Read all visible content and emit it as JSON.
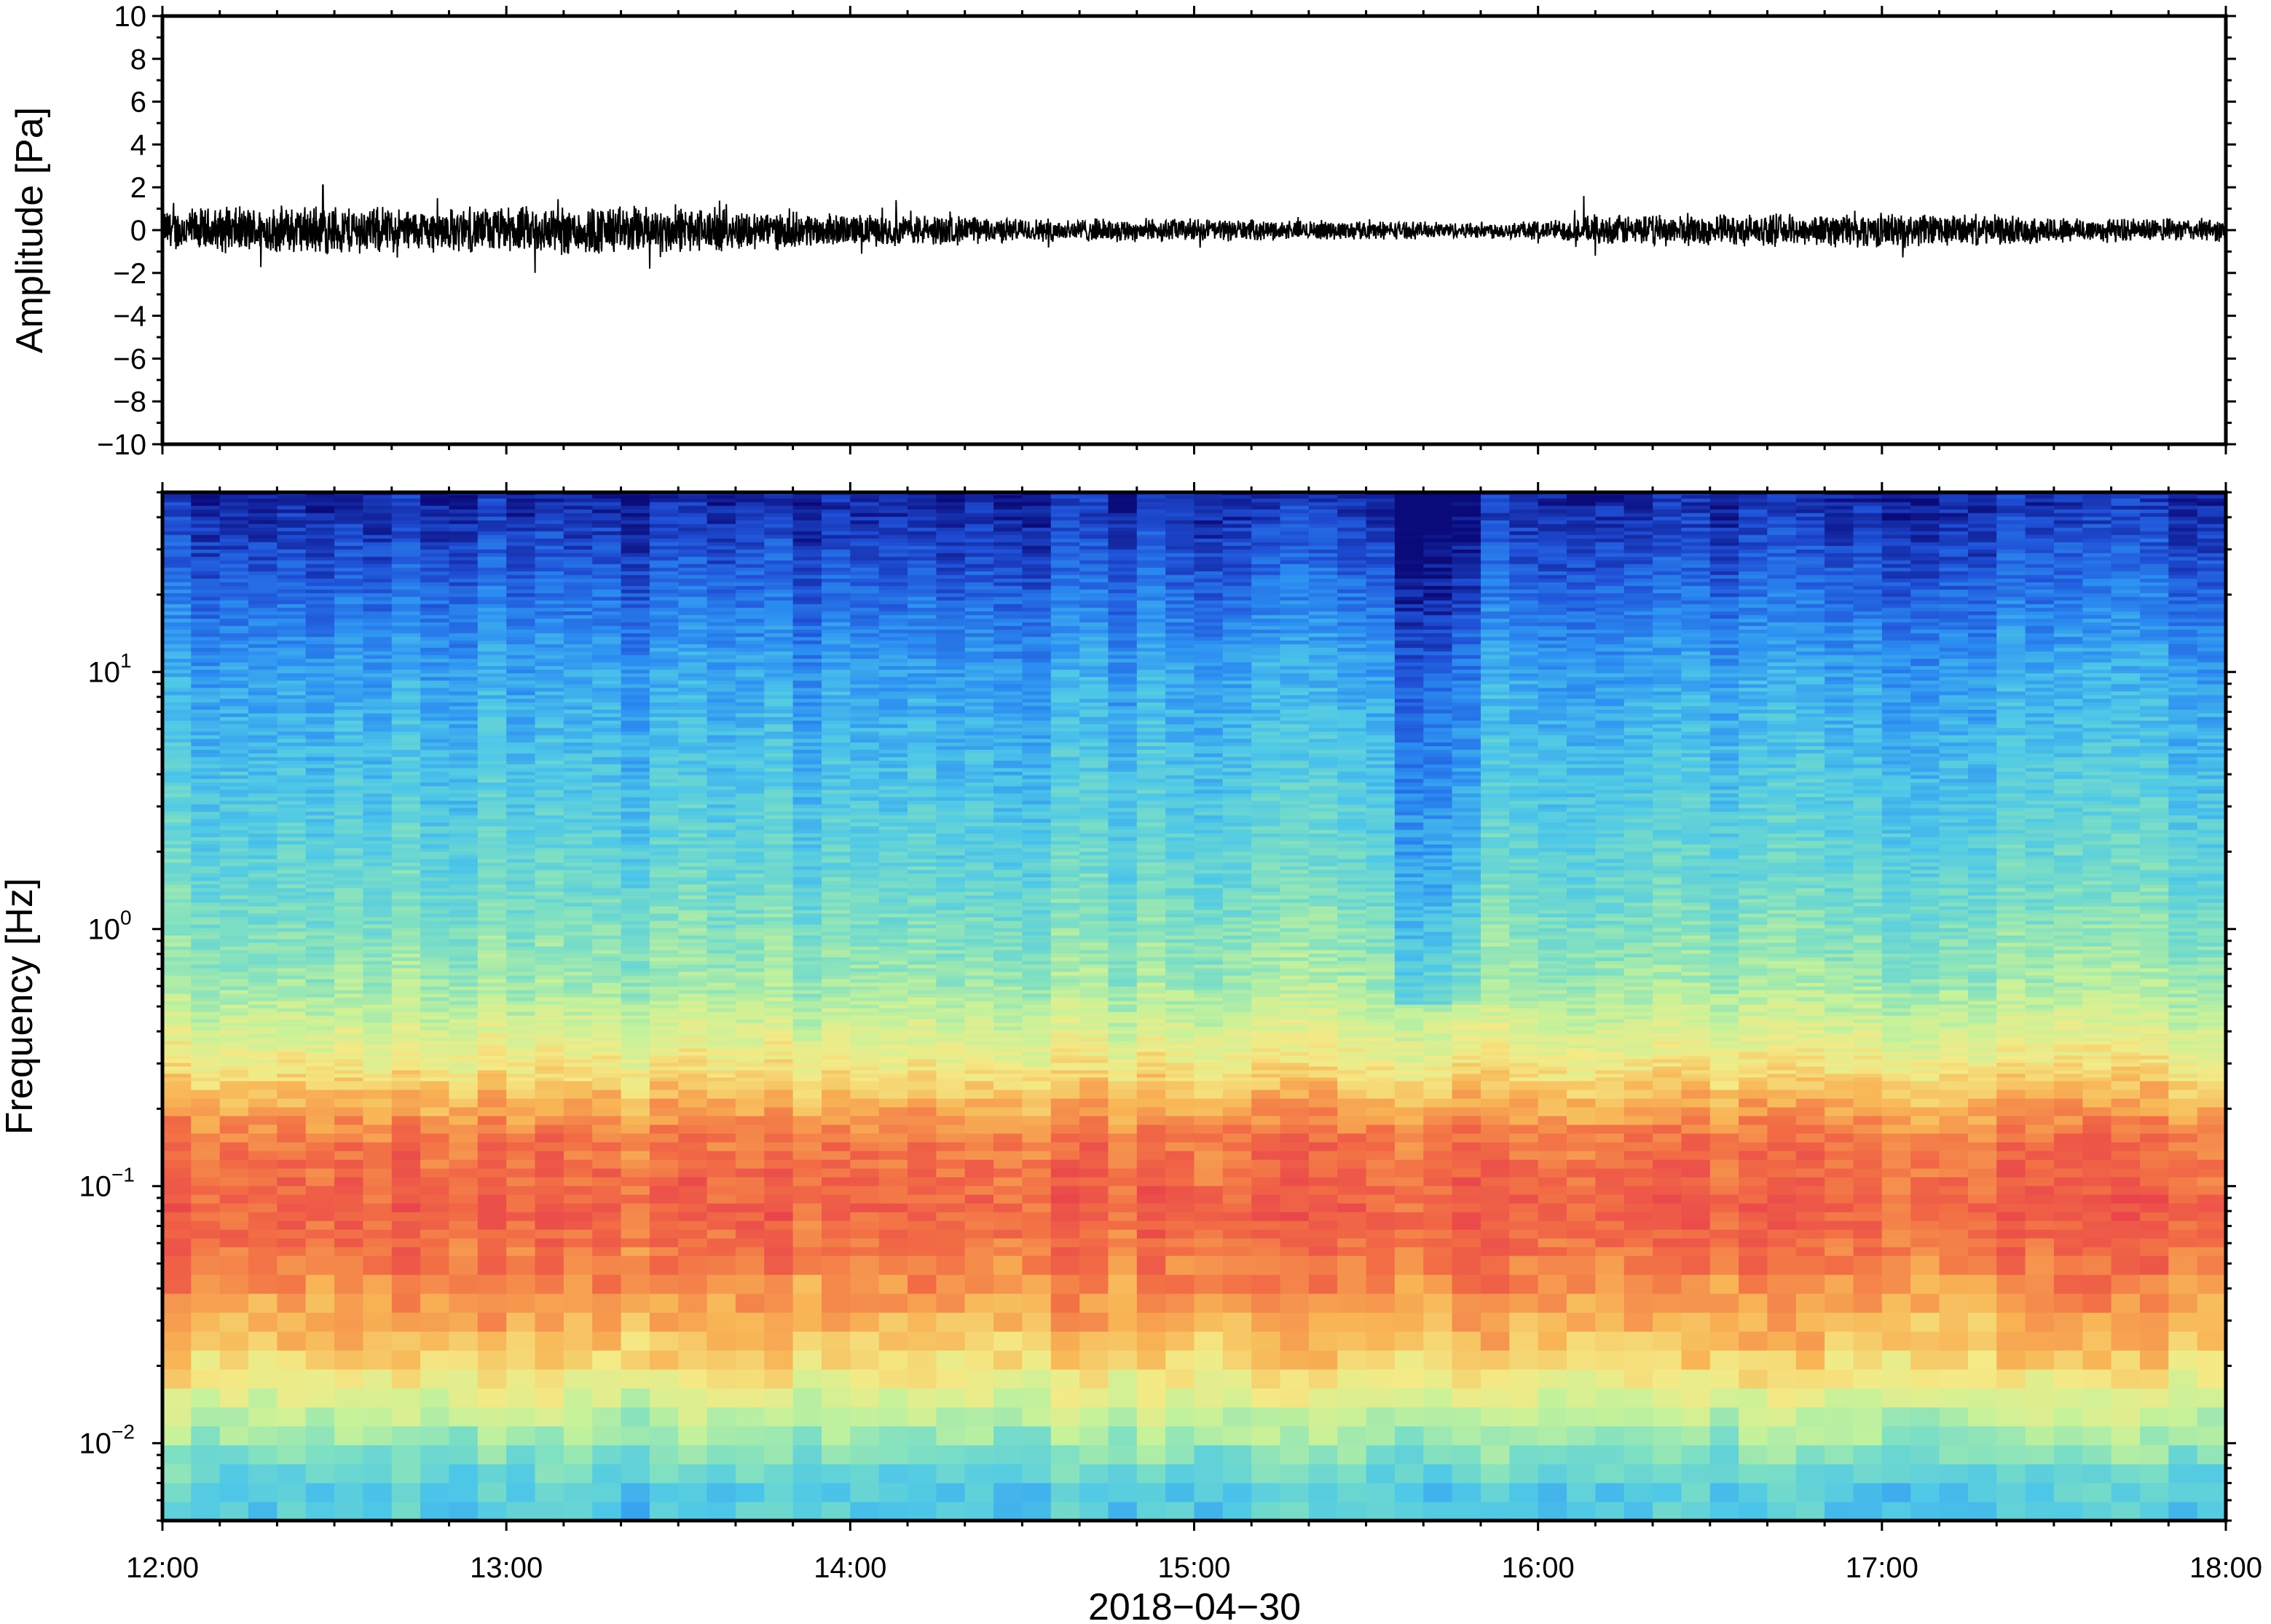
{
  "chart_data": [
    {
      "type": "line",
      "panel": "waveform",
      "ylabel": "Amplitude [Pa]",
      "xlabel": "",
      "ylim": [
        -10,
        10
      ],
      "xlim": [
        "12:00",
        "18:00"
      ],
      "y_ticks": [
        "10",
        "8",
        "6",
        "4",
        "2",
        "0",
        "−2",
        "−4",
        "−6",
        "−8",
        "−10"
      ],
      "y_tick_values": [
        10,
        8,
        6,
        4,
        2,
        0,
        -2,
        -4,
        -6,
        -8,
        -10
      ],
      "grid": false,
      "series": [
        {
          "color": "#000000",
          "time_hours": [
            12.0,
            12.25,
            12.5,
            12.75,
            13.0,
            13.25,
            13.5,
            13.75,
            14.0,
            14.25,
            14.5,
            14.75,
            15.0,
            15.25,
            15.5,
            15.75,
            16.0,
            16.25,
            16.5,
            16.75,
            17.0,
            17.25,
            17.5,
            17.75,
            18.0
          ],
          "envelope_pa": [
            1.1,
            1.2,
            1.3,
            1.1,
            1.2,
            1.3,
            1.2,
            1.0,
            0.8,
            0.8,
            0.6,
            0.6,
            0.6,
            0.5,
            0.5,
            0.4,
            0.5,
            0.8,
            0.8,
            0.8,
            0.9,
            0.8,
            0.7,
            0.6,
            0.6
          ],
          "peaks": [
            {
              "time": "12:28",
              "value": 2.1
            },
            {
              "time": "13:05",
              "value": -2.0
            },
            {
              "time": "13:25",
              "value": -1.8
            },
            {
              "time": "14:08",
              "value": 1.4
            },
            {
              "time": "16:08",
              "value": 1.6
            },
            {
              "time": "16:10",
              "value": -1.2
            }
          ]
        }
      ]
    },
    {
      "type": "heatmap",
      "panel": "spectrogram",
      "ylabel": "Frequency [Hz]",
      "xlabel": "2018−04−30",
      "y_scale": "log",
      "ylim_hz": [
        0.005,
        50
      ],
      "y_ticks": [
        {
          "value": 10,
          "base": "10",
          "exp": "1"
        },
        {
          "value": 1,
          "base": "10",
          "exp": "0"
        },
        {
          "value": 0.1,
          "base": "10",
          "exp": "−1"
        },
        {
          "value": 0.01,
          "base": "10",
          "exp": "−2"
        }
      ],
      "x_ticks": [
        "12:00",
        "13:00",
        "14:00",
        "15:00",
        "16:00",
        "17:00",
        "18:00"
      ],
      "colormap": [
        "#0a0a7a",
        "#1f4fd6",
        "#2c8ff2",
        "#4ec8e8",
        "#7fe0c2",
        "#c6f29a",
        "#f4ea86",
        "#f8b455",
        "#f26d45",
        "#e8404c"
      ],
      "profile": {
        "freq_hz": [
          0.006,
          0.01,
          0.02,
          0.04,
          0.08,
          0.15,
          0.3,
          0.6,
          1.5,
          4,
          10,
          20,
          45
        ],
        "level": [
          0.35,
          0.5,
          0.72,
          0.85,
          0.92,
          0.87,
          0.66,
          0.5,
          0.4,
          0.33,
          0.26,
          0.16,
          0.05
        ]
      },
      "quiet_interval": {
        "start": "15:33",
        "end": "15:48"
      },
      "grid": false
    }
  ]
}
